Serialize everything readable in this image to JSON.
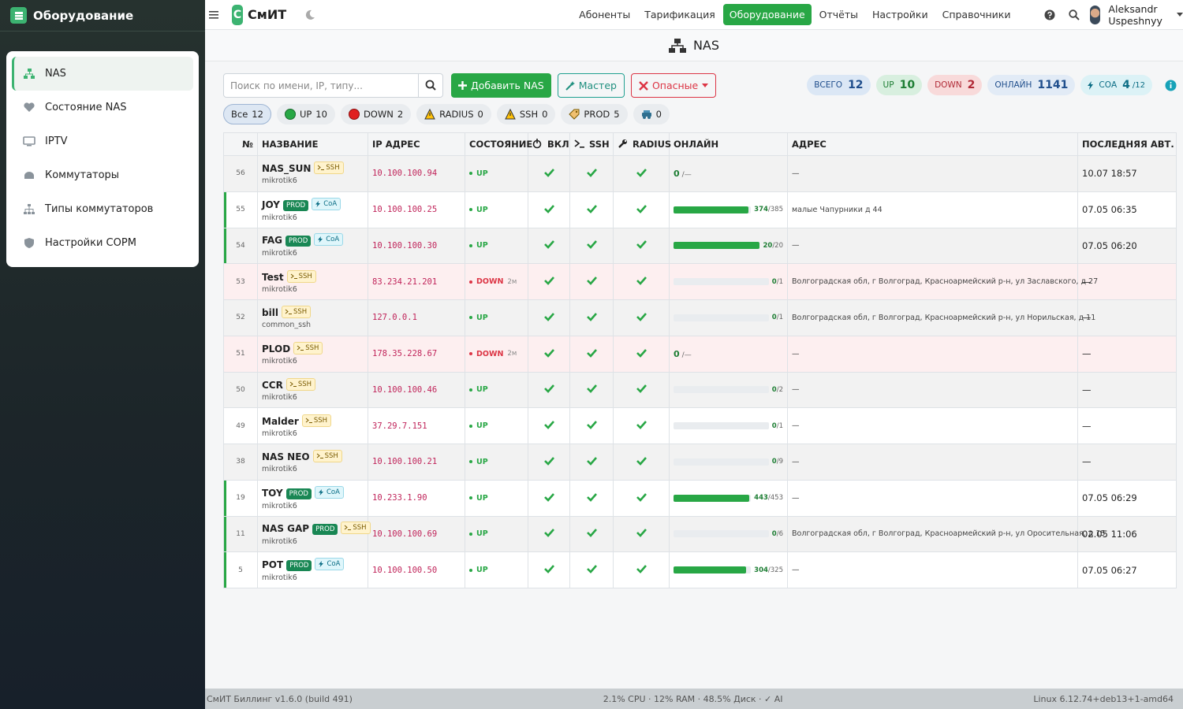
{
  "sidebar": {
    "title": "Оборудование",
    "active": 0,
    "items": [
      "NAS",
      "Состояние NAS",
      "IPTV",
      "Коммутаторы",
      "Типы коммутаторов",
      "Настройки СОРМ"
    ]
  },
  "topbar": {
    "logo_letter": "С",
    "logo": "СмИТ",
    "nav": [
      "Абоненты",
      "Тарификация",
      "Оборудование",
      "Отчёты",
      "Настройки",
      "Справочники"
    ],
    "nav_active": 2,
    "user": "Aleksandr Uspeshnyy"
  },
  "page_title": "NAS",
  "toolbar": {
    "search_placeholder": "Поиск по имени, IP, типу...",
    "add": "Добавить NAS",
    "wizard": "Мастер",
    "danger": "Опасные"
  },
  "stats": [
    {
      "label": "ВСЕГО",
      "value": 12
    },
    {
      "label": "UP",
      "value": 10
    },
    {
      "label": "DOWN",
      "value": 2
    },
    {
      "label": "ОНЛАЙН",
      "value": 1141
    },
    {
      "label": "СОА",
      "value": 4,
      "total": {
        "value": 12,
        "label": "/12"
      }
    }
  ],
  "filters": [
    {
      "label": "Все",
      "count": 12
    },
    {
      "label": "UP",
      "count": 10
    },
    {
      "label": "DOWN",
      "count": 2
    },
    {
      "label": "RADIUS",
      "count": 0
    },
    {
      "label": "SSH",
      "count": 0
    },
    {
      "label": "PROD",
      "count": 5
    },
    {
      "count": 0
    }
  ],
  "filter_active": 0,
  "table": {
    "columns": [
      "№",
      "НАЗВАНИЕ",
      "IP АДРЕС",
      "СОСТОЯНИЕ",
      "ВКЛ",
      "SSH",
      "RADIUS",
      "ОНЛАЙН",
      "АДРЕС",
      "ПОСЛЕДНЯЯ АВТ."
    ],
    "rows": [
      {
        "id": 56,
        "name": "NAS_SUN",
        "tags": [
          "SSH"
        ],
        "type": "mikrotik6",
        "ip": "10.100.100.94",
        "state": "UP",
        "enabled": true,
        "ssh": true,
        "radius": true,
        "online": 0,
        "online_max": {
          "value": null,
          "label": "/—"
        },
        "address": "—",
        "last_auth": "10.07 18:57"
      },
      {
        "id": 55,
        "name": "JOY",
        "tags": [
          "PROD",
          "CoA"
        ],
        "type": "mikrotik6",
        "ip": "10.100.100.25",
        "state": "UP",
        "enabled": true,
        "ssh": true,
        "radius": true,
        "online": 374,
        "online_max": {
          "value": 385,
          "label": "/385"
        },
        "address": "малые Чапурники д 44",
        "last_auth": "07.05 06:35"
      },
      {
        "id": 54,
        "name": "FAG",
        "tags": [
          "PROD",
          "CoA"
        ],
        "type": "mikrotik6",
        "ip": "10.100.100.30",
        "state": "UP",
        "enabled": true,
        "ssh": true,
        "radius": true,
        "online": 20,
        "online_max": {
          "value": 20,
          "label": "/20"
        },
        "address": "—",
        "last_auth": "07.05 06:20"
      },
      {
        "id": 53,
        "name": "Test",
        "tags": [
          "SSH"
        ],
        "type": "mikrotik6",
        "ip": "83.234.21.201",
        "state": "DOWN",
        "state_age": "2м",
        "enabled": true,
        "ssh": true,
        "radius": true,
        "online": 0,
        "online_max": {
          "value": 1,
          "label": "/1"
        },
        "address": "Волгоградская обл, г Волгоград, Красноармейский р-н, ул Заславского, д 27",
        "last_auth": "—"
      },
      {
        "id": 52,
        "name": "bill",
        "tags": [
          "SSH"
        ],
        "type": "common_ssh",
        "ip": "127.0.0.1",
        "state": "UP",
        "enabled": true,
        "ssh": true,
        "radius": true,
        "online": 0,
        "online_max": {
          "value": 1,
          "label": "/1"
        },
        "address": "Волгоградская обл, г Волгоград, Красноармейский р-н, ул Норильская, д 11",
        "last_auth": "—"
      },
      {
        "id": 51,
        "name": "PLOD",
        "tags": [
          "SSH"
        ],
        "type": "mikrotik6",
        "ip": "178.35.228.67",
        "state": "DOWN",
        "state_age": "2м",
        "enabled": true,
        "ssh": true,
        "radius": true,
        "online": 0,
        "online_max": {
          "value": null,
          "label": "/—"
        },
        "address": "—",
        "last_auth": "—"
      },
      {
        "id": 50,
        "name": "CCR",
        "tags": [
          "SSH"
        ],
        "type": "mikrotik6",
        "ip": "10.100.100.46",
        "state": "UP",
        "enabled": true,
        "ssh": true,
        "radius": true,
        "online": 0,
        "online_max": {
          "value": 2,
          "label": "/2"
        },
        "address": "—",
        "last_auth": "—"
      },
      {
        "id": 49,
        "name": "Malder",
        "tags": [
          "SSH"
        ],
        "type": "mikrotik6",
        "ip": "37.29.7.151",
        "state": "UP",
        "enabled": true,
        "ssh": true,
        "radius": true,
        "online": 0,
        "online_max": {
          "value": 1,
          "label": "/1"
        },
        "address": "—",
        "last_auth": "—"
      },
      {
        "id": 38,
        "name": "NAS NEO",
        "tags": [
          "SSH"
        ],
        "type": "mikrotik6",
        "ip": "10.100.100.21",
        "state": "UP",
        "enabled": true,
        "ssh": true,
        "radius": true,
        "online": 0,
        "online_max": {
          "value": 9,
          "label": "/9"
        },
        "address": "—",
        "last_auth": "—"
      },
      {
        "id": 19,
        "name": "TOY",
        "tags": [
          "PROD",
          "CoA"
        ],
        "type": "mikrotik6",
        "ip": "10.233.1.90",
        "state": "UP",
        "enabled": true,
        "ssh": true,
        "radius": true,
        "online": 443,
        "online_max": {
          "value": 453,
          "label": "/453"
        },
        "address": "—",
        "last_auth": "07.05 06:29"
      },
      {
        "id": 11,
        "name": "NAS GAP",
        "tags": [
          "PROD",
          "SSH"
        ],
        "type": "mikrotik6",
        "ip": "10.100.100.69",
        "state": "UP",
        "enabled": true,
        "ssh": true,
        "radius": true,
        "online": 0,
        "online_max": {
          "value": 6,
          "label": "/6"
        },
        "address": "Волгоградская обл, г Волгоград, Красноармейский р-н, ул Оросительная, д 15",
        "last_auth": "02.05 11:06"
      },
      {
        "id": 5,
        "name": "POT",
        "tags": [
          "PROD",
          "CoA"
        ],
        "type": "mikrotik6",
        "ip": "10.100.100.50",
        "state": "UP",
        "enabled": true,
        "ssh": true,
        "radius": true,
        "online": 304,
        "online_max": {
          "value": 325,
          "label": "/325"
        },
        "address": "—",
        "last_auth": "07.05 06:27"
      }
    ]
  },
  "footer": {
    "left": "СмИТ Биллинг v1.6.0 (build 491)",
    "center": "2.1% CPU · 12% RAM · 48.5% Диск · ✓ AI",
    "right": "Linux 6.12.74+deb13+1-amd64"
  }
}
